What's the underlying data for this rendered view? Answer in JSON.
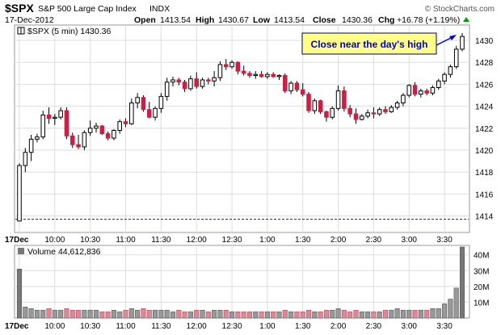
{
  "header": {
    "symbol": "$SPX",
    "name": "S&P 500 Large Cap Index",
    "exchange": "INDX",
    "date": "17-Dec-2012",
    "open_label": "Open",
    "open": "1413.54",
    "high_label": "High",
    "high": "1430.67",
    "low_label": "Low",
    "low": "1413.54",
    "close_label": "Close",
    "close": "1430.36",
    "chg_label": "Chg",
    "chg": "+16.78 (+1.19%)",
    "watermark": "© StockCharts.com"
  },
  "colors": {
    "up": "#ffffff",
    "down": "#cc1f45",
    "annotation_bg": "#ffff88",
    "annotation_text": "#0000cc",
    "arrow": "#0000ee",
    "volume_bar": "#777777"
  },
  "chart_data": [
    {
      "type": "candlestick",
      "legend": "$SPX (5 min) 1430.36",
      "ylim": [
        1412.5,
        1431.4
      ],
      "yticks": [
        1414,
        1416,
        1418,
        1420,
        1422,
        1424,
        1426,
        1428,
        1430
      ],
      "xticks": [
        {
          "label": "17Dec",
          "bar": 0
        },
        {
          "label": "10:00",
          "bar": 6
        },
        {
          "label": "10:30",
          "bar": 12
        },
        {
          "label": "11:00",
          "bar": 18
        },
        {
          "label": "11:30",
          "bar": 24
        },
        {
          "label": "12:00",
          "bar": 30
        },
        {
          "label": "12:30",
          "bar": 36
        },
        {
          "label": "1:00",
          "bar": 42
        },
        {
          "label": "1:30",
          "bar": 48
        },
        {
          "label": "2:00",
          "bar": 54
        },
        {
          "label": "2:30",
          "bar": 60
        },
        {
          "label": "3:00",
          "bar": 66
        },
        {
          "label": "3:30",
          "bar": 72
        }
      ],
      "reference_line": 1413.7,
      "annotation": "Close near the day's high",
      "candles": [
        [
          1413.54,
          1418.8,
          1413.54,
          1418.6
        ],
        [
          1418.6,
          1420.2,
          1418.0,
          1419.8
        ],
        [
          1419.8,
          1421.4,
          1419.0,
          1421.0
        ],
        [
          1421.0,
          1421.5,
          1420.7,
          1421.2
        ],
        [
          1421.2,
          1423.6,
          1421.0,
          1423.2
        ],
        [
          1423.2,
          1423.9,
          1422.4,
          1422.9
        ],
        [
          1422.9,
          1423.3,
          1422.3,
          1423.0
        ],
        [
          1423.0,
          1423.9,
          1422.8,
          1423.6
        ],
        [
          1423.6,
          1423.9,
          1421.0,
          1421.3
        ],
        [
          1421.3,
          1421.6,
          1420.2,
          1420.5
        ],
        [
          1420.5,
          1421.4,
          1420.1,
          1420.3
        ],
        [
          1420.3,
          1421.8,
          1420.0,
          1421.6
        ],
        [
          1421.6,
          1422.7,
          1421.3,
          1422.0
        ],
        [
          1422.0,
          1422.5,
          1421.6,
          1422.2
        ],
        [
          1422.2,
          1422.3,
          1421.4,
          1421.5
        ],
        [
          1421.5,
          1421.7,
          1420.9,
          1421.1
        ],
        [
          1421.1,
          1421.9,
          1420.9,
          1421.8
        ],
        [
          1421.8,
          1422.8,
          1421.5,
          1422.6
        ],
        [
          1422.6,
          1422.9,
          1422.1,
          1422.4
        ],
        [
          1422.4,
          1424.7,
          1422.3,
          1424.3
        ],
        [
          1424.3,
          1425.2,
          1423.8,
          1424.8
        ],
        [
          1424.8,
          1425.0,
          1423.5,
          1423.7
        ],
        [
          1423.7,
          1424.4,
          1422.9,
          1423.0
        ],
        [
          1423.0,
          1424.0,
          1422.7,
          1423.8
        ],
        [
          1423.8,
          1425.2,
          1423.4,
          1424.9
        ],
        [
          1424.9,
          1426.6,
          1424.5,
          1426.2
        ],
        [
          1426.2,
          1426.7,
          1425.8,
          1426.4
        ],
        [
          1426.4,
          1426.6,
          1425.9,
          1426.2
        ],
        [
          1426.2,
          1426.4,
          1425.3,
          1425.6
        ],
        [
          1425.6,
          1426.8,
          1425.4,
          1426.5
        ],
        [
          1426.5,
          1427.1,
          1425.6,
          1425.8
        ],
        [
          1425.8,
          1426.6,
          1425.6,
          1426.4
        ],
        [
          1426.4,
          1426.6,
          1426.0,
          1426.3
        ],
        [
          1426.3,
          1427.2,
          1425.8,
          1426.6
        ],
        [
          1426.6,
          1428.1,
          1426.3,
          1427.8
        ],
        [
          1427.8,
          1428.3,
          1427.3,
          1427.6
        ],
        [
          1427.6,
          1428.2,
          1427.4,
          1428.0
        ],
        [
          1428.0,
          1428.1,
          1426.9,
          1427.2
        ],
        [
          1427.2,
          1427.7,
          1426.8,
          1427.0
        ],
        [
          1427.0,
          1427.2,
          1426.6,
          1426.8
        ],
        [
          1426.8,
          1427.2,
          1426.5,
          1426.9
        ],
        [
          1426.9,
          1427.2,
          1426.6,
          1426.7
        ],
        [
          1426.7,
          1427.1,
          1426.5,
          1426.9
        ],
        [
          1426.9,
          1427.1,
          1426.6,
          1426.7
        ],
        [
          1426.7,
          1426.9,
          1426.4,
          1426.8
        ],
        [
          1426.8,
          1427.0,
          1425.2,
          1425.4
        ],
        [
          1425.4,
          1426.3,
          1425.1,
          1426.1
        ],
        [
          1426.1,
          1426.3,
          1425.3,
          1425.5
        ],
        [
          1425.5,
          1426.1,
          1424.9,
          1425.1
        ],
        [
          1425.1,
          1425.3,
          1423.4,
          1423.6
        ],
        [
          1423.6,
          1424.7,
          1423.3,
          1424.5
        ],
        [
          1424.5,
          1424.6,
          1423.3,
          1423.5
        ],
        [
          1423.5,
          1423.6,
          1422.6,
          1423.0
        ],
        [
          1423.0,
          1424.0,
          1422.8,
          1423.8
        ],
        [
          1423.8,
          1425.9,
          1423.6,
          1425.4
        ],
        [
          1425.4,
          1425.8,
          1423.5,
          1423.8
        ],
        [
          1423.8,
          1424.1,
          1423.0,
          1423.3
        ],
        [
          1423.3,
          1423.8,
          1422.4,
          1422.8
        ],
        [
          1422.8,
          1423.3,
          1422.7,
          1423.1
        ],
        [
          1423.1,
          1423.7,
          1422.9,
          1423.4
        ],
        [
          1423.4,
          1423.9,
          1422.9,
          1423.3
        ],
        [
          1423.3,
          1423.9,
          1423.1,
          1423.7
        ],
        [
          1423.7,
          1424.0,
          1423.3,
          1423.5
        ],
        [
          1423.5,
          1424.1,
          1423.4,
          1423.9
        ],
        [
          1423.9,
          1424.5,
          1423.7,
          1424.3
        ],
        [
          1424.3,
          1425.2,
          1424.0,
          1425.0
        ],
        [
          1425.0,
          1426.0,
          1424.8,
          1425.9
        ],
        [
          1425.9,
          1426.2,
          1424.9,
          1425.1
        ],
        [
          1425.1,
          1425.6,
          1424.8,
          1425.4
        ],
        [
          1425.4,
          1425.6,
          1425.0,
          1425.2
        ],
        [
          1425.2,
          1425.9,
          1425.0,
          1425.7
        ],
        [
          1425.7,
          1426.5,
          1425.5,
          1426.3
        ],
        [
          1426.3,
          1427.1,
          1426.0,
          1426.9
        ],
        [
          1426.9,
          1427.8,
          1426.6,
          1427.6
        ],
        [
          1427.6,
          1429.5,
          1427.4,
          1429.2
        ],
        [
          1429.2,
          1430.67,
          1429.0,
          1430.36
        ]
      ]
    },
    {
      "type": "bar",
      "legend": "Volume 44,612,836",
      "ylim": [
        0,
        46
      ],
      "yticks": [
        10,
        20,
        30,
        40
      ],
      "ytick_labels": [
        "10M",
        "20M",
        "30M",
        "40M"
      ],
      "xticks": [
        {
          "label": "17Dec",
          "bar": 0
        },
        {
          "label": "10:00",
          "bar": 6
        },
        {
          "label": "10:30",
          "bar": 12
        },
        {
          "label": "11:00",
          "bar": 18
        },
        {
          "label": "11:30",
          "bar": 24
        },
        {
          "label": "12:00",
          "bar": 30
        },
        {
          "label": "12:30",
          "bar": 36
        },
        {
          "label": "1:00",
          "bar": 42
        },
        {
          "label": "1:30",
          "bar": 48
        },
        {
          "label": "2:00",
          "bar": 54
        },
        {
          "label": "2:30",
          "bar": 60
        },
        {
          "label": "3:00",
          "bar": 66
        },
        {
          "label": "3:30",
          "bar": 72
        }
      ],
      "volumes": [
        31,
        7,
        6,
        5,
        5,
        6,
        5,
        5,
        6,
        5,
        5,
        5,
        5,
        5,
        4,
        4,
        5,
        4,
        5,
        6,
        5,
        6,
        5,
        5,
        5,
        5,
        4,
        5,
        4,
        4,
        5,
        5,
        4,
        5,
        5,
        5,
        4,
        4,
        4,
        4,
        4,
        4,
        4,
        4,
        4,
        5,
        4,
        4,
        4,
        5,
        4,
        4,
        5,
        5,
        6,
        5,
        4,
        5,
        4,
        4,
        4,
        4,
        5,
        5,
        6,
        5,
        5,
        5,
        5,
        5,
        6,
        6,
        9,
        12,
        19,
        45
      ]
    }
  ]
}
